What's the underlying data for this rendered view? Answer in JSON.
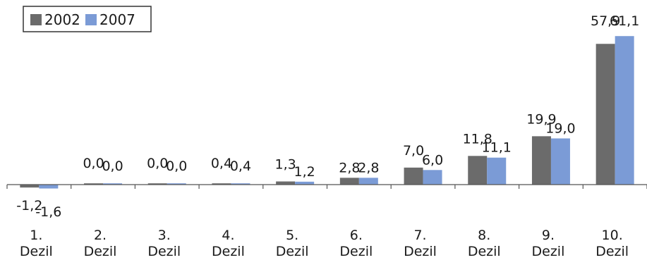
{
  "chart_data": {
    "type": "bar",
    "categories": [
      [
        "1.",
        "Dezil"
      ],
      [
        "2.",
        "Dezil"
      ],
      [
        "3.",
        "Dezil"
      ],
      [
        "4.",
        "Dezil"
      ],
      [
        "5.",
        "Dezil"
      ],
      [
        "6.",
        "Dezil"
      ],
      [
        "7.",
        "Dezil"
      ],
      [
        "8.",
        "Dezil"
      ],
      [
        "9.",
        "Dezil"
      ],
      [
        "10.",
        "Dezil"
      ]
    ],
    "series": [
      {
        "name": "2002",
        "color": "#6b6b6b",
        "values": [
          -1.2,
          0.0,
          0.0,
          0.4,
          1.3,
          2.8,
          7.0,
          11.8,
          19.9,
          57.9
        ],
        "labels": [
          "-1,2",
          "0,0",
          "0,0",
          "0,4",
          "1,3",
          "2,8",
          "7,0",
          "11,8",
          "19,9",
          "57,9"
        ]
      },
      {
        "name": "2007",
        "color": "#7b9bd6",
        "values": [
          -1.6,
          0.0,
          0.0,
          0.4,
          1.2,
          2.8,
          6.0,
          11.1,
          19.0,
          61.1
        ],
        "labels": [
          "-1,6",
          "0,0",
          "0,0",
          "0,4",
          "1,2",
          "2,8",
          "6,0",
          "11,1",
          "19,0",
          "61,1"
        ]
      }
    ],
    "title": "",
    "xlabel": "",
    "ylabel": "",
    "legend": "top-left",
    "grid": false
  }
}
